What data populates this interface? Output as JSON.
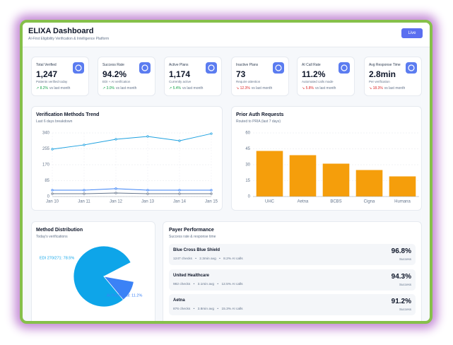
{
  "header": {
    "title": "ELIXA Dashboard",
    "subtitle": "AI-First Eligibility Verification & Intelligence Platform",
    "live_button": "Live"
  },
  "stats": [
    {
      "title": "Total Verified",
      "value": "1,247",
      "subtitle": "Patients verified today",
      "change": "8.2%",
      "change_suffix": "vs last month",
      "trend": "up"
    },
    {
      "title": "Success Rate",
      "value": "94.2%",
      "subtitle": "EDI + AI verification",
      "change": "3.0%",
      "change_suffix": "vs last month",
      "trend": "up"
    },
    {
      "title": "Active Plans",
      "value": "1,174",
      "subtitle": "Currently active",
      "change": "5.4%",
      "change_suffix": "vs last month",
      "trend": "up"
    },
    {
      "title": "Inactive Plans",
      "value": "73",
      "subtitle": "Require attention",
      "change": "12.3%",
      "change_suffix": "vs last month",
      "trend": "down"
    },
    {
      "title": "AI Call Rate",
      "value": "11.2%",
      "subtitle": "Automated calls made",
      "change": "5.8%",
      "change_suffix": "vs last month",
      "trend": "down"
    },
    {
      "title": "Avg Response Time",
      "value": "2.8min",
      "subtitle": "Per verification",
      "change": "18.3%",
      "change_suffix": "vs last month",
      "trend": "down"
    }
  ],
  "trend_chart": {
    "type": "line",
    "title": "Verification Methods Trend",
    "subtitle": "Last 6 days breakdown",
    "x": [
      "Jan 10",
      "Jan 11",
      "Jan 12",
      "Jan 13",
      "Jan 14",
      "Jan 15"
    ],
    "ylim": [
      0,
      340
    ],
    "yticks": [
      0,
      85,
      170,
      255,
      340
    ],
    "grid": true,
    "series": [
      {
        "color": "#1ea1e0",
        "values": [
          253,
          276,
          306,
          321,
          298,
          336
        ]
      },
      {
        "color": "#3b82f6",
        "values": [
          34,
          34,
          42,
          34,
          34,
          34
        ]
      },
      {
        "color": "#64748b",
        "values": [
          15,
          15,
          19,
          15,
          15,
          15
        ]
      }
    ]
  },
  "prior_auth_chart": {
    "type": "bar",
    "title": "Prior Auth Requests",
    "subtitle": "Routed to PRIA (last 7 days)",
    "categories": [
      "UHC",
      "Aetna",
      "BCBS",
      "Cigna",
      "Humana"
    ],
    "values": [
      43,
      39,
      31,
      25,
      19
    ],
    "color": "#f59e0b",
    "ylim": [
      0,
      60
    ],
    "yticks": [
      0,
      15,
      30,
      45,
      60
    ],
    "grid": true
  },
  "method_chart": {
    "type": "pie",
    "title": "Method Distribution",
    "subtitle": "Today's verifications",
    "labels": [
      "EDI 270/271: 78.5%",
      "AI Payer Call: 11.2%"
    ],
    "values": [
      78.5,
      11.2
    ],
    "colors": [
      "#0ea5e9",
      "#3b82f6"
    ]
  },
  "payer_performance": {
    "title": "Payer Performance",
    "subtitle": "Success rate & response time",
    "rows": [
      {
        "name": "Blue Cross Blue Shield",
        "checks": "1247 checks",
        "avg": "2.3min avg",
        "ai_calls": "8.2% AI calls",
        "rate": "96.8%",
        "rate_label": "Success"
      },
      {
        "name": "United Healthcare",
        "checks": "982 checks",
        "avg": "3.1min avg",
        "ai_calls": "12.5% AI calls",
        "rate": "94.3%",
        "rate_label": "Success"
      },
      {
        "name": "Aetna",
        "checks": "876 checks",
        "avg": "3.8min avg",
        "ai_calls": "15.3% AI calls",
        "rate": "91.2%",
        "rate_label": "Success"
      }
    ]
  }
}
